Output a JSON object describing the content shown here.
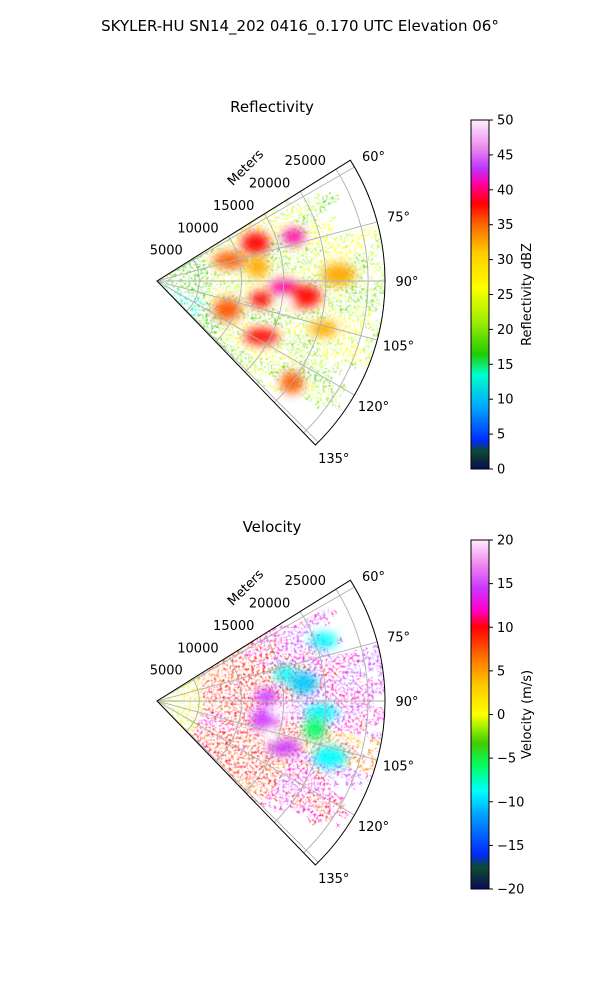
{
  "figure_title": "SKYLER-HU  SN14_202  0416_0.170 UTC Elevation 06°",
  "chart_data": [
    {
      "type": "heatmap",
      "projection": "polar-sector",
      "title": "Reflectivity",
      "range_axis_label": "Meters",
      "range_ticks": [
        "5000",
        "10000",
        "15000",
        "20000",
        "25000"
      ],
      "range_tick_values": [
        5000,
        10000,
        15000,
        20000,
        25000
      ],
      "range_max": 27000,
      "azimuth_ticks": [
        "60°",
        "75°",
        "90°",
        "105°",
        "120°",
        "135°"
      ],
      "azimuth_tick_values": [
        60,
        75,
        90,
        105,
        120,
        135
      ],
      "azimuth_range": [
        58,
        136
      ],
      "grid": true,
      "colorbar": {
        "label": "Reflectivity dBZ",
        "ticks": [
          "0",
          "5",
          "10",
          "15",
          "20",
          "25",
          "30",
          "35",
          "40",
          "45",
          "50"
        ],
        "range": [
          0,
          50
        ]
      },
      "dominant_range": [
        18,
        32
      ],
      "cells": [
        {
          "az": 72,
          "r": 17000,
          "value": 39
        },
        {
          "az": 69,
          "r": 12500,
          "value": 37
        },
        {
          "az": 74,
          "r": 9000,
          "value": 34
        },
        {
          "az": 82,
          "r": 12000,
          "value": 33
        },
        {
          "az": 93,
          "r": 15000,
          "value": 40
        },
        {
          "az": 96,
          "r": 17500,
          "value": 38
        },
        {
          "az": 100,
          "r": 12500,
          "value": 36
        },
        {
          "az": 112,
          "r": 9000,
          "value": 35
        },
        {
          "az": 118,
          "r": 14000,
          "value": 36
        },
        {
          "az": 127,
          "r": 20000,
          "value": 34
        },
        {
          "az": 106,
          "r": 20500,
          "value": 33
        },
        {
          "az": 88,
          "r": 21500,
          "value": 32
        }
      ],
      "gaps": [
        {
          "az": 99,
          "r": 15500
        },
        {
          "az": 70,
          "r": 25000
        }
      ]
    },
    {
      "type": "heatmap",
      "projection": "polar-sector",
      "title": "Velocity",
      "range_axis_label": "Meters",
      "range_ticks": [
        "5000",
        "10000",
        "15000",
        "20000",
        "25000"
      ],
      "range_tick_values": [
        5000,
        10000,
        15000,
        20000,
        25000
      ],
      "range_max": 27000,
      "azimuth_ticks": [
        "60°",
        "75°",
        "90°",
        "105°",
        "120°",
        "135°"
      ],
      "azimuth_tick_values": [
        60,
        75,
        90,
        105,
        120,
        135
      ],
      "azimuth_range": [
        58,
        136
      ],
      "grid": true,
      "colorbar": {
        "label": "Velocity (m/s)",
        "ticks": [
          "−20",
          "−15",
          "−10",
          "−5",
          "0",
          "5",
          "10",
          "15",
          "20"
        ],
        "range": [
          -20,
          20
        ]
      },
      "field": "inbound near radar and to the south, outbound (magenta) to the north-east, pockets of negative velocity (cyan) around 75°–100° at 15–20 km",
      "cells": [
        {
          "az": 78,
          "r": 15500,
          "value": -10
        },
        {
          "az": 83,
          "r": 17500,
          "value": -11
        },
        {
          "az": 94,
          "r": 19500,
          "value": -9
        },
        {
          "az": 100,
          "r": 19000,
          "value": -8
        },
        {
          "az": 70,
          "r": 21000,
          "value": -10
        },
        {
          "az": 108,
          "r": 21500,
          "value": -9
        },
        {
          "az": 88,
          "r": 13000,
          "value": 15
        },
        {
          "az": 100,
          "r": 13000,
          "value": 15
        },
        {
          "az": 110,
          "r": 16000,
          "value": 14
        }
      ],
      "gaps": [
        {
          "az": 95,
          "r": 14500
        },
        {
          "az": 106,
          "r": 14000
        }
      ]
    }
  ]
}
